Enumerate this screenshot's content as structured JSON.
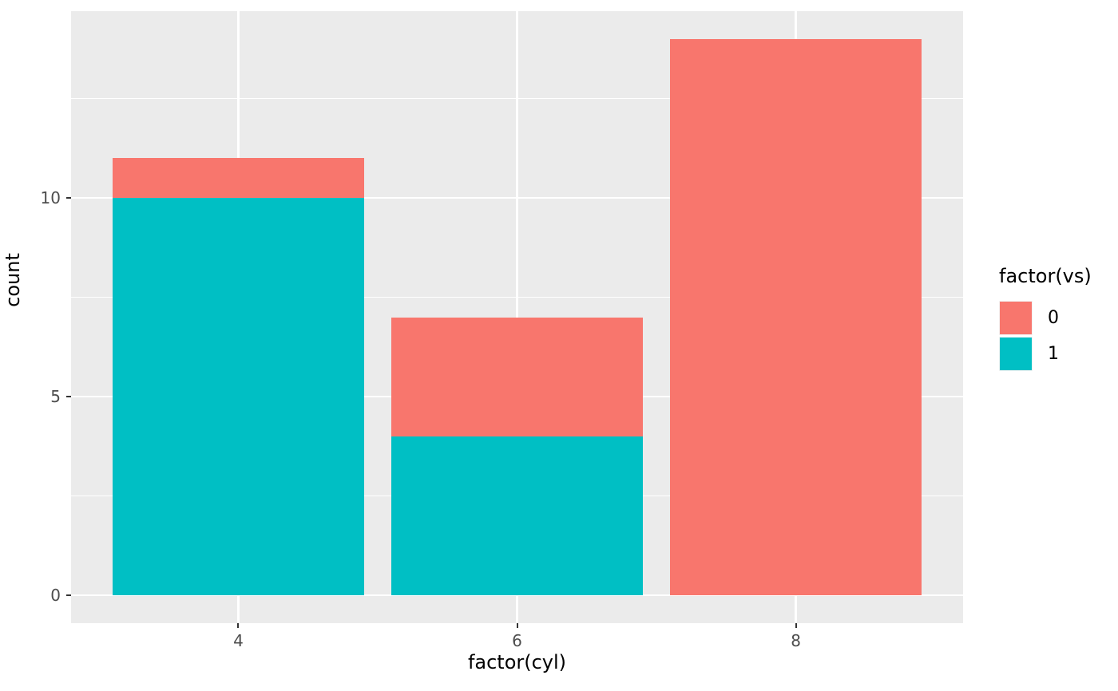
{
  "chart_data": {
    "type": "bar",
    "stacked": true,
    "xlabel": "factor(cyl)",
    "ylabel": "count",
    "categories": [
      "4",
      "6",
      "8"
    ],
    "series": [
      {
        "name": "0",
        "color": "#F8766D",
        "values": [
          1,
          3,
          14
        ]
      },
      {
        "name": "1",
        "color": "#00BFC4",
        "values": [
          10,
          4,
          0
        ]
      }
    ],
    "stack_order": "first_series_on_top",
    "totals": [
      11,
      7,
      14
    ],
    "y_ticks": [
      0,
      5,
      10
    ],
    "y_minor_ticks": [
      2.5,
      7.5,
      12.5
    ],
    "ylim": [
      -0.7,
      14.7
    ],
    "bar_width_fraction": 0.9,
    "grid": true,
    "legend": {
      "title": "factor(vs)",
      "position": "right",
      "entries": [
        {
          "label": "0",
          "color": "#F8766D"
        },
        {
          "label": "1",
          "color": "#00BFC4"
        }
      ]
    },
    "colors": {
      "panel_background": "#EBEBEB",
      "gridline": "#FFFFFF",
      "tick_mark": "#333333",
      "tick_label_text": "#4D4D4D",
      "title_text": "#000000"
    }
  }
}
